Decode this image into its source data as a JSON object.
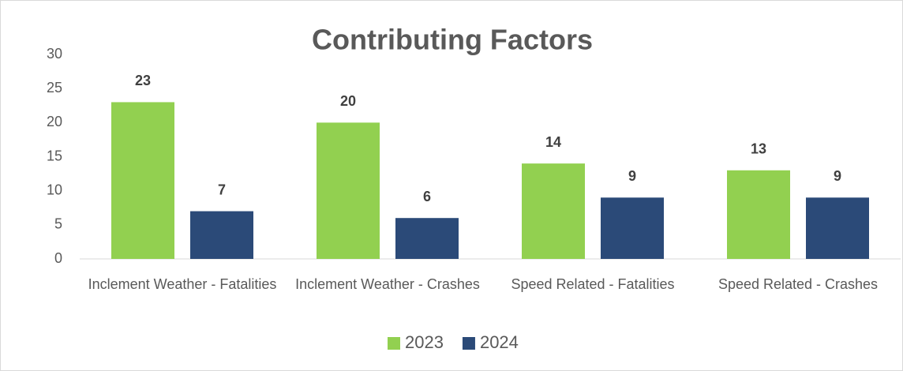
{
  "chart_data": {
    "type": "bar",
    "title": "Contributing Factors",
    "categories": [
      "Inclement Weather - Fatalities",
      "Inclement Weather - Crashes",
      "Speed Related - Fatalities",
      "Speed Related - Crashes"
    ],
    "series": [
      {
        "name": "2023",
        "color": "#92d050",
        "values": [
          23,
          20,
          14,
          13
        ]
      },
      {
        "name": "2024",
        "color": "#2b4a78",
        "values": [
          7,
          6,
          9,
          9
        ]
      }
    ],
    "ylim": [
      0,
      30
    ],
    "yticks": [
      0,
      5,
      10,
      15,
      20,
      25,
      30
    ],
    "grid": false,
    "legend": "bottom"
  }
}
